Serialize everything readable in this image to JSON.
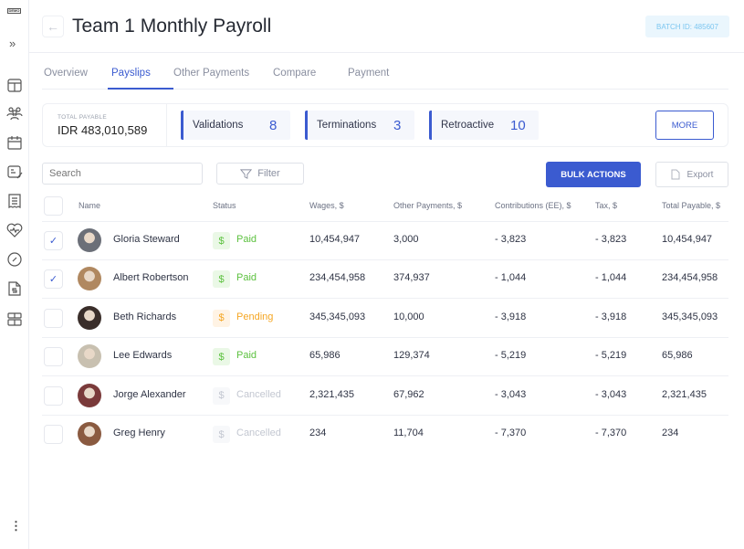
{
  "sidebar": {
    "logo": "DEMO",
    "expand_icon": "double-chevron-right-icon",
    "items": [
      "layout-icon",
      "team-icon",
      "calendar-icon",
      "payslip-edit-icon",
      "receipt-icon",
      "heart-pulse-icon",
      "gauge-icon",
      "dollar-document-icon",
      "grid-icon"
    ],
    "more_icon": "vertical-dots-icon"
  },
  "header": {
    "title": "Team 1 Monthly Payroll",
    "batch": "BATCH ID: 485607"
  },
  "tabs": [
    {
      "label": "Overview"
    },
    {
      "label": "Payslips",
      "active": true
    },
    {
      "label": "Other Payments"
    },
    {
      "label": "Compare"
    },
    {
      "label": "Payment"
    }
  ],
  "summary": {
    "total_label": "TOTAL PAYABLE",
    "total_value": "IDR 483,010,589",
    "stats": [
      {
        "label": "Validations",
        "value": "8"
      },
      {
        "label": "Terminations",
        "value": "3"
      },
      {
        "label": "Retroactive",
        "value": "10"
      }
    ],
    "more": "MORE"
  },
  "toolbar": {
    "search_placeholder": "Search",
    "filter": "Filter",
    "bulk": "BULK ACTIONS",
    "export": "Export"
  },
  "table": {
    "columns": [
      "Name",
      "Status",
      "Wages, $",
      "Other Payments, $",
      "Contributions (EE), $",
      "Tax, $",
      "Total Payable, $"
    ],
    "rows": [
      {
        "checked": true,
        "name": "Gloria Steward",
        "status": "Paid",
        "wages": "10,454,947",
        "other": "3,000",
        "contrib": "- 3,823",
        "tax": "- 3,823",
        "total": "10,454,947"
      },
      {
        "checked": true,
        "name": "Albert Robertson",
        "status": "Paid",
        "wages": "234,454,958",
        "other": "374,937",
        "contrib": "- 1,044",
        "tax": "- 1,044",
        "total": "234,454,958"
      },
      {
        "checked": false,
        "name": "Beth Richards",
        "status": "Pending",
        "wages": "345,345,093",
        "other": "10,000",
        "contrib": "- 3,918",
        "tax": "- 3,918",
        "total": "345,345,093"
      },
      {
        "checked": false,
        "name": "Lee Edwards",
        "status": "Paid",
        "wages": "65,986",
        "other": "129,374",
        "contrib": "- 5,219",
        "tax": "- 5,219",
        "total": "65,986"
      },
      {
        "checked": false,
        "name": "Jorge Alexander",
        "status": "Cancelled",
        "wages": "2,321,435",
        "other": "67,962",
        "contrib": "- 3,043",
        "tax": "- 3,043",
        "total": "2,321,435"
      },
      {
        "checked": false,
        "name": "Greg Henry",
        "status": "Cancelled",
        "wages": "234",
        "other": "11,704",
        "contrib": "- 7,370",
        "tax": "- 7,370",
        "total": "234"
      }
    ]
  },
  "colors": {
    "accent": "#3b5bd0",
    "paid": "#5cc13f",
    "pending": "#f5a623",
    "cancelled": "#c3c7d1"
  }
}
